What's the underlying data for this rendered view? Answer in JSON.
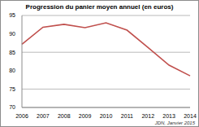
{
  "chart_data": {
    "type": "line",
    "title": "Progression du panier moyen annuel (en euros)",
    "annotation": "JDN, Janvier 2015",
    "categories": [
      "2006",
      "2007",
      "2008",
      "2009",
      "2010",
      "2011",
      "2012",
      "2013",
      "2014"
    ],
    "values": [
      87.2,
      91.8,
      92.6,
      91.7,
      93.0,
      91.0,
      86.3,
      81.5,
      78.6
    ],
    "color": "#c0504d",
    "ylim": [
      70,
      95
    ],
    "yticks": [
      70,
      75,
      80,
      85,
      90,
      95
    ],
    "grid": true,
    "marker": "none"
  }
}
